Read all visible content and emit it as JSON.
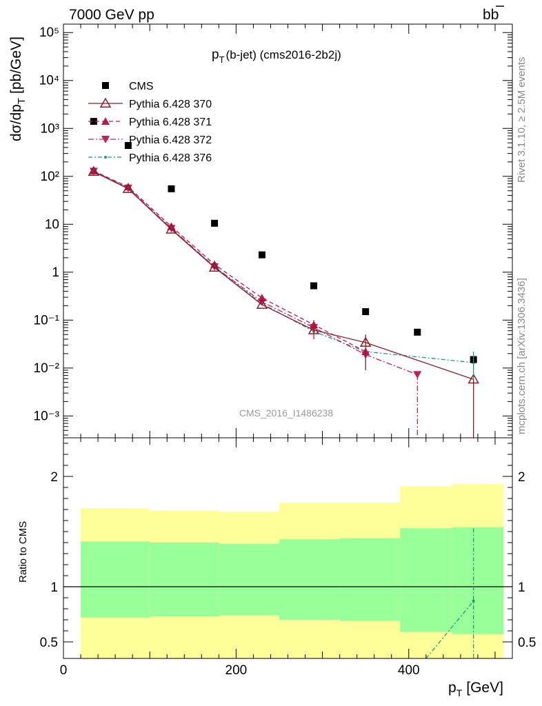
{
  "header": {
    "left": "7000 GeV pp",
    "right_main": "b",
    "right_bar": "b"
  },
  "side": {
    "rivet": "Rivet 3.1.10, ≥ 2.5M events",
    "mcplots": "mcplots.cern.ch [arXiv:1306.3436]"
  },
  "main_panel": {
    "title_p": "p",
    "title_t": "T",
    "title_rest": "(b-jet) (cms2016-2b2j)",
    "watermark": "CMS_2016_I1486238",
    "ylabel_a": "dσ/dp",
    "ylabel_t": "T",
    "ylabel_b": "[pb/GeV]"
  },
  "ratio_panel": {
    "ylabel": "Ratio to CMS",
    "xlabel_p": "p",
    "xlabel_t": "T",
    "xlabel_rest": "[GeV]"
  },
  "legend": [
    {
      "label": "CMS",
      "color": "#000000",
      "marker": "square"
    },
    {
      "label": "Pythia 6.428 370",
      "color": "#8b1a2b",
      "marker": "open-triangle-up",
      "line": "solid"
    },
    {
      "label": "Pythia 6.428 371",
      "color": "#b5174f",
      "marker": "filled-triangle-up",
      "line": "dashed"
    },
    {
      "label": "Pythia 6.428 372",
      "color": "#c0205e",
      "marker": "filled-triangle-down",
      "line": "dashdot"
    },
    {
      "label": "Pythia 6.428 376",
      "color": "#1a9a7a",
      "marker": "dot",
      "line": "dashdot"
    }
  ],
  "chart_data": [
    {
      "type": "scatter",
      "yscale": "log",
      "xlim": [
        0,
        520
      ],
      "ylim": [
        0.00035,
        150000
      ],
      "y_tick_labels": [
        "10⁻³",
        "10⁻²",
        "10⁻¹",
        "1",
        "10",
        "10²",
        "10³",
        "10⁴",
        "10⁵"
      ],
      "grid": false,
      "legend_position": "top-left",
      "series": [
        {
          "name": "CMS",
          "x": [
            35,
            75,
            125,
            175,
            230,
            290,
            350,
            410,
            475
          ],
          "y": [
            1400,
            440,
            55,
            10.5,
            2.3,
            0.52,
            0.15,
            0.056,
            0.015
          ]
        },
        {
          "name": "Pythia 6.428 370",
          "x": [
            35,
            75,
            125,
            175,
            230,
            290,
            350,
            475
          ],
          "y": [
            125,
            55,
            7.8,
            1.25,
            0.21,
            0.062,
            0.034,
            0.0058
          ]
        },
        {
          "name": "Pythia 6.428 371",
          "x": [
            35,
            75,
            125,
            175,
            230,
            290,
            350
          ],
          "y": [
            130,
            60,
            9.0,
            1.45,
            0.29,
            0.08,
            0.022
          ]
        },
        {
          "name": "Pythia 6.428 372",
          "x": [
            35,
            75,
            125,
            175,
            230,
            290,
            350,
            410
          ],
          "y": [
            128,
            57,
            8.2,
            1.3,
            0.24,
            0.07,
            0.019,
            0.0073
          ]
        },
        {
          "name": "Pythia 6.428 376",
          "x": [
            35,
            75,
            125,
            175,
            230,
            290,
            350,
            475
          ],
          "y": [
            126,
            56,
            8.0,
            1.28,
            0.22,
            0.058,
            0.022,
            0.013
          ]
        }
      ]
    },
    {
      "type": "area",
      "xlim": [
        0,
        520
      ],
      "ylim": [
        0.35,
        2.35
      ],
      "x_tick_labels": [
        "0",
        "200",
        "400"
      ],
      "y_tick_labels": [
        "0.5",
        "1",
        "2"
      ],
      "bands": {
        "edges": [
          20,
          100,
          180,
          250,
          320,
          390,
          450,
          510
        ],
        "yellow_hi": [
          1.71,
          1.69,
          1.68,
          1.76,
          1.76,
          1.91,
          1.93,
          1.94
        ],
        "yellow_lo": [
          0.72,
          0.73,
          0.74,
          0.7,
          0.69,
          0.59,
          0.57,
          0.56
        ],
        "green_hi": [
          1.41,
          1.4,
          1.39,
          1.43,
          1.44,
          1.53,
          1.54,
          1.55
        ],
        "green_lo": [
          0.72,
          0.73,
          0.74,
          0.7,
          0.69,
          0.59,
          0.57,
          0.56
        ]
      },
      "series": [
        {
          "name": "Pythia 6.428 376",
          "x": [
            420,
            475
          ],
          "y": [
            0.35,
            0.87
          ],
          "err_hi": [
            0,
            1.53
          ],
          "err_lo": [
            0,
            0.35
          ]
        }
      ]
    }
  ]
}
